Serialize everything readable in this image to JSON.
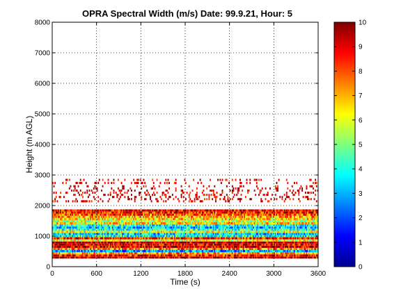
{
  "chart_data": {
    "type": "heatmap",
    "title": "OPRA Spectral Width (m/s)  Date: 99.9.21, Hour: 5",
    "xlabel": "Time (s)",
    "ylabel": "Height (m AGL)",
    "xlim": [
      0,
      3600
    ],
    "ylim": [
      0,
      8000
    ],
    "xticks": [
      0,
      600,
      1200,
      1800,
      2400,
      3000,
      3600
    ],
    "yticks": [
      0,
      1000,
      2000,
      3000,
      4000,
      5000,
      6000,
      7000,
      8000
    ],
    "grid": true,
    "colormap": "jet",
    "colorbar": {
      "min": 0,
      "max": 10,
      "ticks": [
        0,
        1,
        2,
        3,
        4,
        5,
        6,
        7,
        8,
        9,
        10
      ]
    },
    "height_gates_m": [
      300,
      370,
      440,
      510,
      580,
      650,
      720,
      790,
      860,
      930,
      1000,
      1070,
      1140,
      1210,
      1280,
      1350,
      1420,
      1490,
      1560,
      1630,
      1700,
      1770,
      1840,
      2140,
      2210,
      2280,
      2350,
      2420,
      2490,
      2560,
      2630,
      2740,
      2840
    ],
    "approx_width_by_gate_m_s": [
      9.2,
      8.6,
      7.0,
      3.0,
      7.5,
      9.2,
      9.0,
      9.5,
      6.0,
      8.5,
      4.0,
      3.3,
      6.0,
      4.2,
      3.2,
      4.0,
      6.5,
      5.5,
      6.6,
      7.0,
      8.0,
      8.5,
      9.0,
      8.6,
      9.0,
      7.8,
      8.5,
      8.8,
      9.0,
      8.5,
      8.8,
      9.2,
      9.5
    ]
  }
}
